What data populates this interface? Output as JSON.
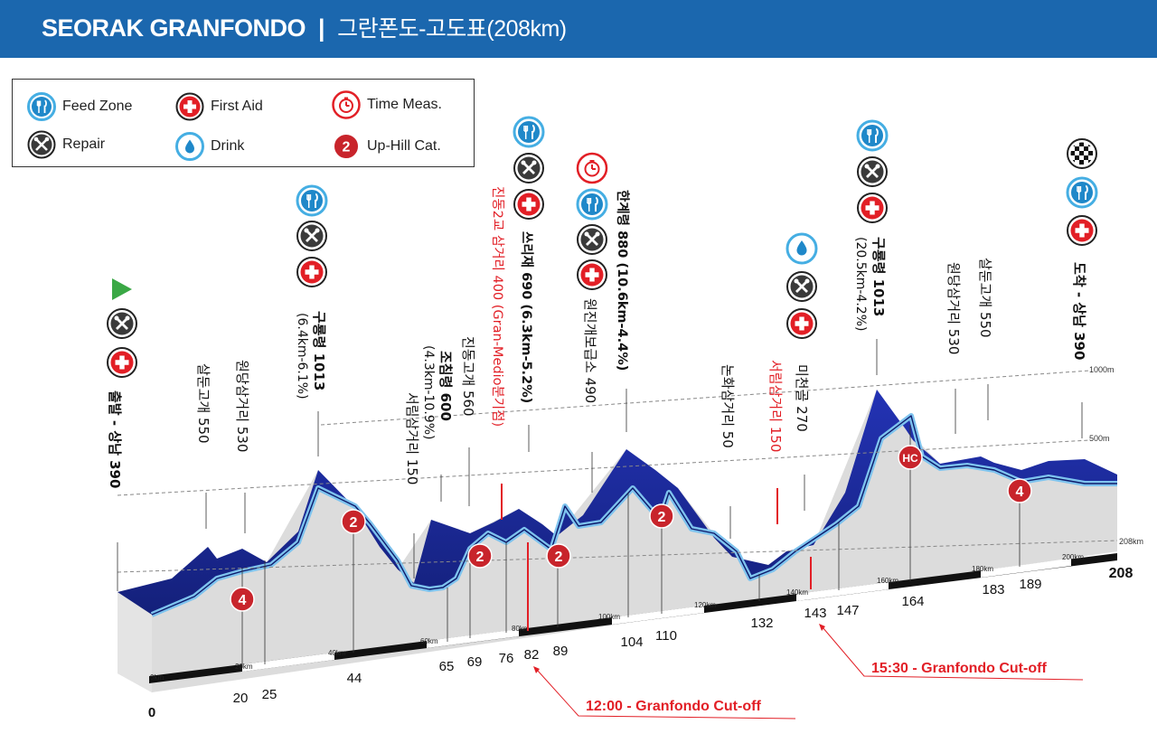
{
  "header": {
    "title": "SEORAK GRANFONDO",
    "separator": "|",
    "subtitle": "그란폰도-고도표(208km)"
  },
  "legend": [
    {
      "icon": "feed-zone-icon",
      "label": "Feed Zone"
    },
    {
      "icon": "first-aid-icon",
      "label": "First Aid"
    },
    {
      "icon": "time-measure-icon",
      "label": "Time Meas."
    },
    {
      "icon": "repair-icon",
      "label": "Repair"
    },
    {
      "icon": "drink-icon",
      "label": "Drink"
    },
    {
      "icon": "uphill-category-icon",
      "label": "Up-Hill Cat.",
      "badge": "2"
    }
  ],
  "colors": {
    "header_bg": "#1b67ae",
    "road_fill": "#1f2b9e",
    "road_outline": "#7ec3ee",
    "ground": "#dcdcdc",
    "cutoff_red": "#e21f26",
    "cat_badge": "#c8242b"
  },
  "chart_data": {
    "type": "area",
    "elevation_guides": [
      "1000m",
      "500m"
    ],
    "axis_end": "208km",
    "ruler_ticks": [
      "0km",
      "20km",
      "40km",
      "60km",
      "80km",
      "100km",
      "120km",
      "140km",
      "160km",
      "180km",
      "200km"
    ],
    "km_markers": [
      "0",
      "20",
      "25",
      "44",
      "65",
      "69",
      "76",
      "82",
      "89",
      "104",
      "110",
      "132",
      "143",
      "147",
      "164",
      "183",
      "189",
      "208"
    ],
    "waypoints": [
      {
        "label": "출발 - 상남 390",
        "bold": true
      },
      {
        "label": "살둔고개 550"
      },
      {
        "label": "원당삼거리 530"
      },
      {
        "label": "구룡령 1013",
        "detail": "(6.4km-6.1%)",
        "bold": true
      },
      {
        "label": "서림삼거리 150"
      },
      {
        "label": "조침령 600",
        "detail": "(4.3km-10.9%)",
        "bold": true
      },
      {
        "label": "진동고개 560"
      },
      {
        "label": "진동2교 삼거리 400 (Gran-Medio분기점)",
        "red": true
      },
      {
        "label": "쓰리재 690 (6.3km-5.2%)",
        "bold": true
      },
      {
        "label": "원진개보급소 490"
      },
      {
        "label": "한계령 880 (10.6km-4.4%)",
        "bold": true
      },
      {
        "label": "논화삼거리 50"
      },
      {
        "label": "서림삼거리 150",
        "red": true
      },
      {
        "label": "미천골 270"
      },
      {
        "label": "구룡령 1013",
        "detail": "(20.5km-4.2%)",
        "bold": true
      },
      {
        "label": "원당삼거리 530"
      },
      {
        "label": "살둔고개 550"
      },
      {
        "label": "도착 - 상남 390",
        "bold": true
      }
    ],
    "climb_categories": [
      "4",
      "2",
      "2",
      "2",
      "2",
      "HC",
      "4"
    ],
    "cutoffs": [
      {
        "label": "12:00 - Granfondo Cut-off",
        "km": 82
      },
      {
        "label": "15:30 - Granfondo Cut-off",
        "km": 143
      }
    ]
  }
}
